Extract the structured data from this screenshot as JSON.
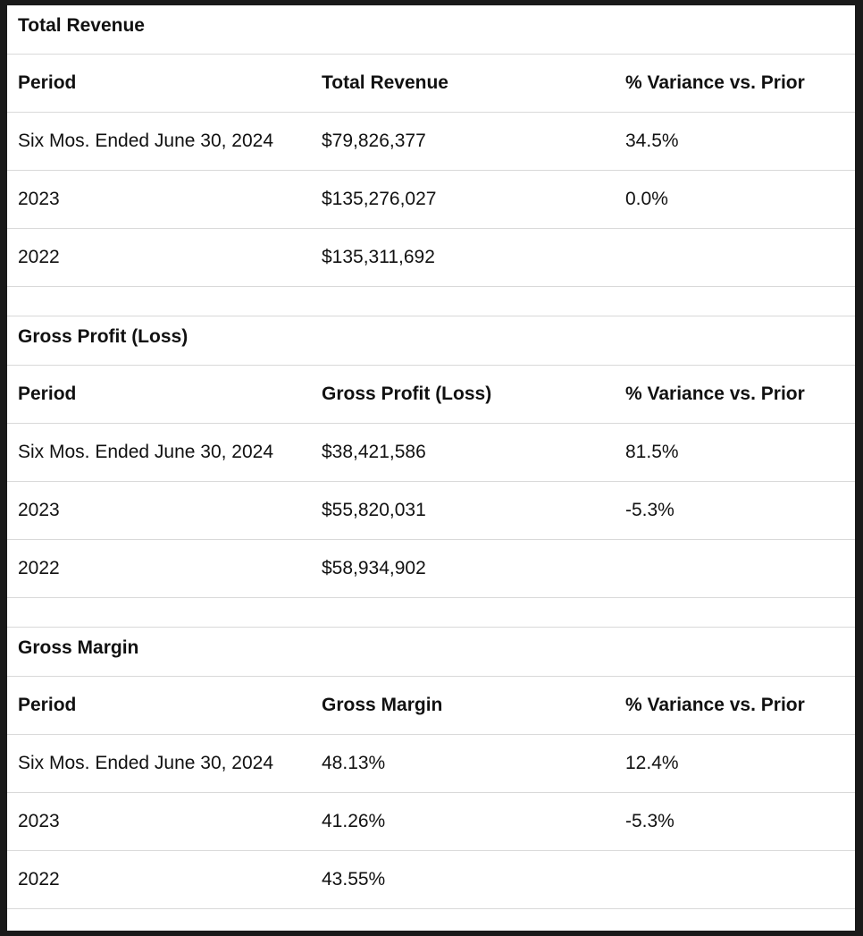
{
  "sections": [
    {
      "title": "Total Revenue",
      "headers": [
        "Period",
        "Total Revenue",
        "% Variance vs. Prior"
      ],
      "rows": [
        [
          "Six Mos. Ended June 30, 2024",
          "$79,826,377",
          "34.5%"
        ],
        [
          "2023",
          "$135,276,027",
          "0.0%"
        ],
        [
          "2022",
          "$135,311,692",
          ""
        ]
      ]
    },
    {
      "title": "Gross Profit (Loss)",
      "headers": [
        "Period",
        "Gross Profit (Loss)",
        "% Variance vs. Prior"
      ],
      "rows": [
        [
          "Six Mos. Ended June 30, 2024",
          "$38,421,586",
          "81.5%"
        ],
        [
          "2023",
          "$55,820,031",
          "-5.3%"
        ],
        [
          "2022",
          "$58,934,902",
          ""
        ]
      ]
    },
    {
      "title": "Gross Margin",
      "headers": [
        "Period",
        "Gross Margin",
        "% Variance vs. Prior"
      ],
      "rows": [
        [
          "Six Mos. Ended June 30, 2024",
          "48.13%",
          "12.4%"
        ],
        [
          "2023",
          "41.26%",
          "-5.3%"
        ],
        [
          "2022",
          "43.55%",
          ""
        ]
      ]
    }
  ]
}
